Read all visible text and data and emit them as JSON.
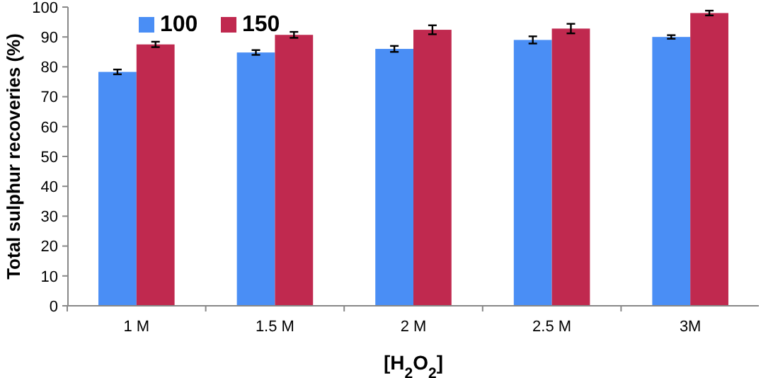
{
  "chart_data": {
    "type": "bar",
    "xlabel": "[H$_{2}$O$_{2}$]",
    "ylabel": "Total sulphur recoveries (%)",
    "categories": [
      "1 M",
      "1.5 M",
      "2 M",
      "2.5 M",
      "3M"
    ],
    "series": [
      {
        "name": "100",
        "color": "#4a8ef5",
        "values": [
          78.3,
          84.8,
          86,
          89,
          90
        ],
        "errors": [
          0.8,
          0.8,
          1,
          1.2,
          0.6
        ]
      },
      {
        "name": "150",
        "color": "#c0294f",
        "values": [
          87.5,
          90.7,
          92.4,
          92.8,
          98
        ],
        "errors": [
          0.9,
          1,
          1.5,
          1.6,
          0.8
        ]
      }
    ],
    "ylim": [
      0,
      100
    ],
    "yticks": [
      0,
      10,
      20,
      30,
      40,
      50,
      60,
      70,
      80,
      90,
      100
    ],
    "legend": "top left",
    "grid": false
  }
}
